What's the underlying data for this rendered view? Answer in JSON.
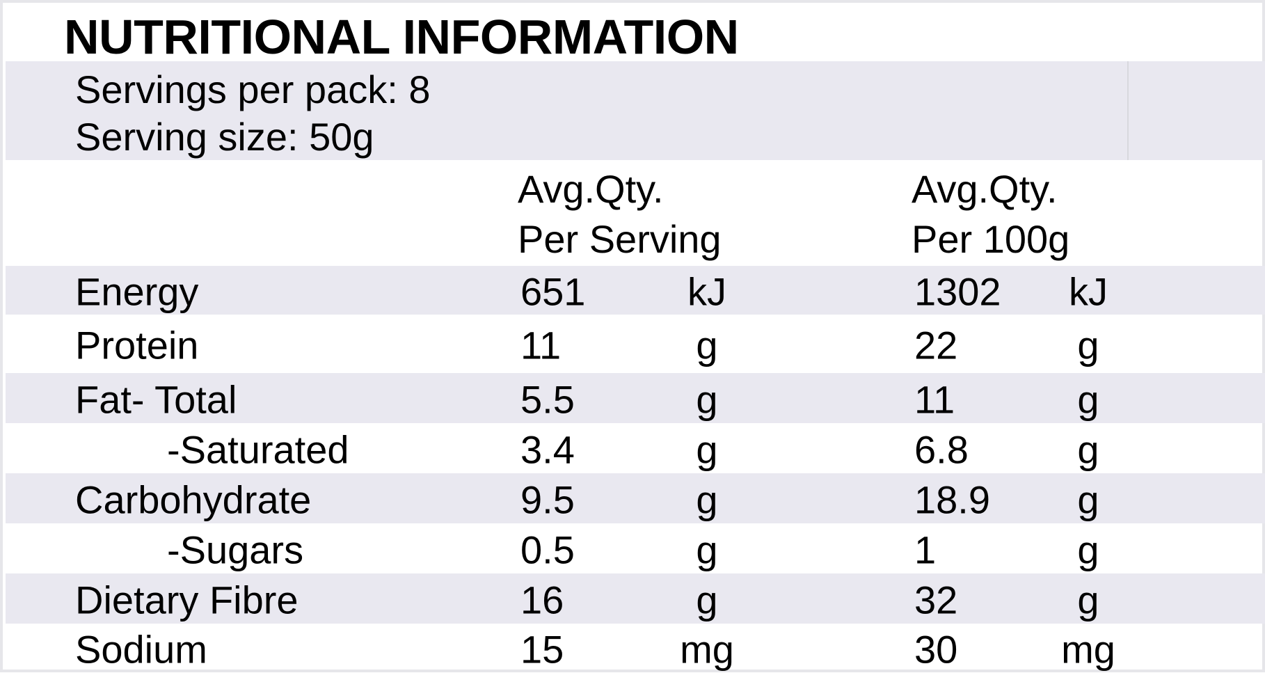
{
  "title": "NUTRITIONAL INFORMATION",
  "servings_per_pack": "Servings per pack: 8",
  "serving_size": "Serving size: 50g",
  "columns": {
    "per_serving": [
      "Avg.Qty.",
      "Per Serving"
    ],
    "per_100g": [
      "Avg.Qty.",
      "Per 100g"
    ]
  },
  "rows": [
    {
      "name": "Energy",
      "serving": "651",
      "serving_unit": "kJ",
      "per100": "1302",
      "per100_unit": "kJ",
      "indent": false,
      "shaded": true
    },
    {
      "name": "Protein",
      "serving": "11",
      "serving_unit": "g",
      "per100": "22",
      "per100_unit": "g",
      "indent": false,
      "shaded": false
    },
    {
      "name": "Fat- Total",
      "serving": "5.5",
      "serving_unit": "g",
      "per100": "11",
      "per100_unit": "g",
      "indent": false,
      "shaded": true
    },
    {
      "name": "-Saturated",
      "serving": "3.4",
      "serving_unit": "g",
      "per100": "6.8",
      "per100_unit": "g",
      "indent": true,
      "shaded": false
    },
    {
      "name": "Carbohydrate",
      "serving": "9.5",
      "serving_unit": "g",
      "per100": "18.9",
      "per100_unit": "g",
      "indent": false,
      "shaded": true
    },
    {
      "name": "-Sugars",
      "serving": "0.5",
      "serving_unit": "g",
      "per100": "1",
      "per100_unit": "g",
      "indent": true,
      "shaded": false
    },
    {
      "name": "Dietary Fibre",
      "serving": "16",
      "serving_unit": "g",
      "per100": "32",
      "per100_unit": "g",
      "indent": false,
      "shaded": true
    },
    {
      "name": "Sodium",
      "serving": "15",
      "serving_unit": "mg",
      "per100": "30",
      "per100_unit": "mg",
      "indent": false,
      "shaded": false
    }
  ],
  "colors": {
    "band": "#e9e8f0",
    "border": "#e6e6ea",
    "text": "#000000"
  }
}
